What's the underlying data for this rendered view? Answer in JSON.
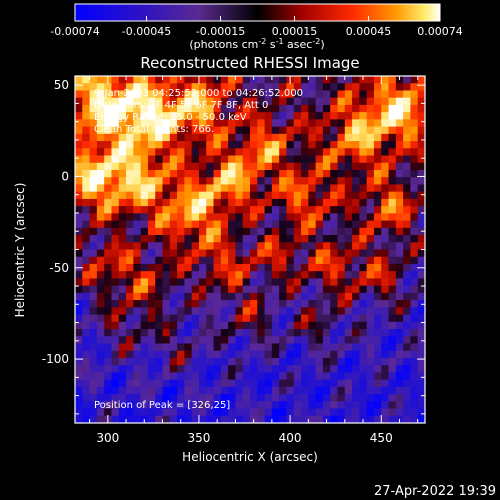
{
  "colorbar": {
    "ticks": [
      "-0.00074",
      "-0.00045",
      "-0.00015",
      "0.00015",
      "0.00045",
      "0.00074"
    ],
    "range": [
      -0.00074,
      0.00074
    ]
  },
  "timestamp": "27-Apr-2022 19:39",
  "colors": {
    "background": "#000000",
    "frame": "#ffffff",
    "text": "#ffffff"
  },
  "chart_data": {
    "type": "heatmap",
    "title": "Reconstructed RHESSI Image",
    "xlabel": "Heliocentric X (arcsec)",
    "ylabel": "Heliocentric Y (arcsec)",
    "colorbar_unit": "(photons cm",
    "colorbar_unit_sup1": "-2",
    "colorbar_unit_mid": " s",
    "colorbar_unit_sup2": "-1",
    "colorbar_unit_end": " asec",
    "colorbar_unit_sup3": "-2",
    "colorbar_unit_close": ")",
    "xlim": [
      282,
      474
    ],
    "ylim": [
      -135,
      55
    ],
    "xticks": [
      300,
      350,
      400,
      450
    ],
    "yticks": [
      50,
      0,
      -50,
      -100
    ],
    "colormap": "rhessi-blue-purple-red-yellow",
    "annotations": [
      "9-Jan-2003 04:25:52.000 to 04:26:52.000",
      "Detectors: 3F 4F 5F 6F 7F 8F, Att 0",
      "Energy Range: 25.0 - 50.0 keV",
      "Clean   Total counts: 766.",
      "Position of Peak = [326,25]"
    ],
    "peak_position": [
      326,
      25
    ]
  }
}
